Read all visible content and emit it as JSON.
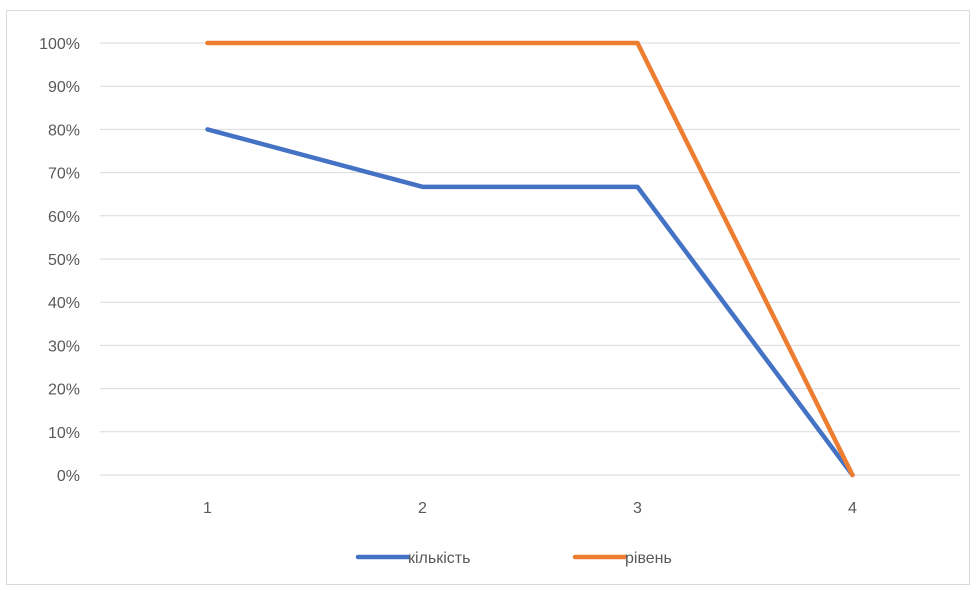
{
  "chart_data": {
    "type": "line",
    "categories": [
      "1",
      "2",
      "3",
      "4"
    ],
    "ylim": [
      0,
      1
    ],
    "y_ticks": [
      "0%",
      "10%",
      "20%",
      "30%",
      "40%",
      "50%",
      "60%",
      "70%",
      "80%",
      "90%",
      "100%"
    ],
    "grid": true,
    "legend_position": "bottom",
    "series": [
      {
        "name": "кількість",
        "values": [
          0.8,
          0.667,
          0.667,
          0
        ],
        "color": "#4472C4"
      },
      {
        "name": "рівень",
        "values": [
          1.0,
          1.0,
          1.0,
          0
        ],
        "color": "#ED7D31"
      }
    ]
  }
}
